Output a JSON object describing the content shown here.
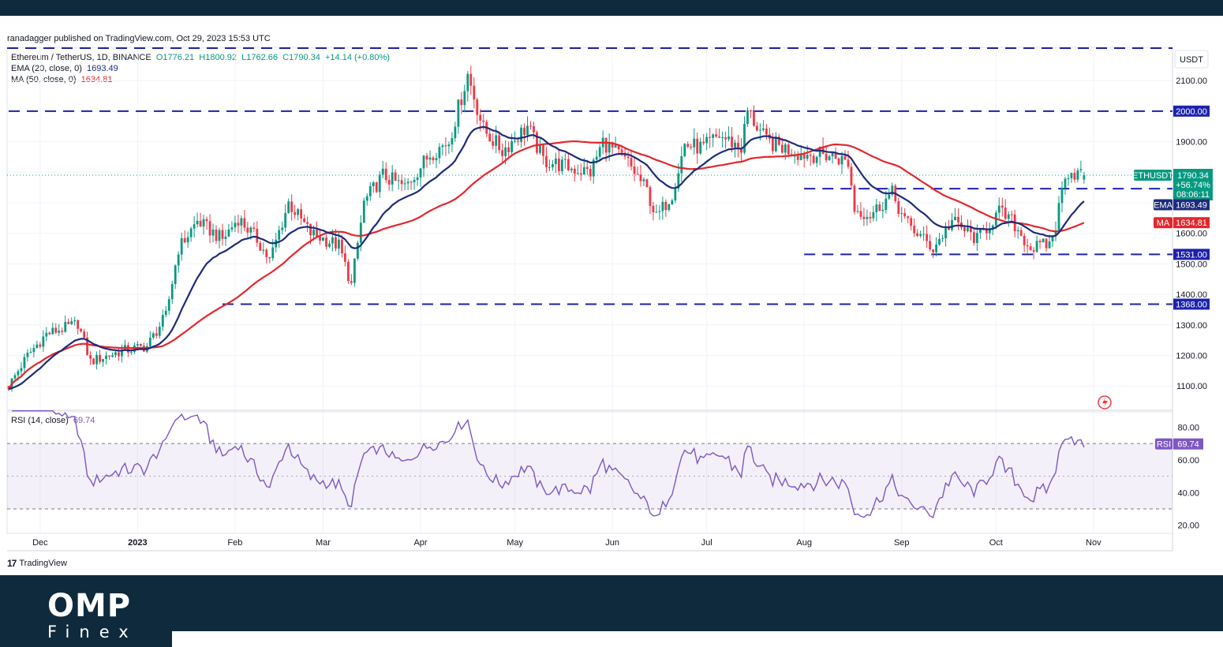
{
  "publisher_line": "ranadagger published on TradingView.com, Oct 29, 2023 15:53 UTC",
  "legend": {
    "symbol_label": "Ethereum / TetherUS, 1D, BINANCE",
    "ohlc": {
      "o": "O1776.21",
      "h": "H1800.92",
      "l": "L1762.66",
      "c": "C1790.34",
      "chg": "+14.14 (+0.80%)"
    },
    "ema_label": "EMA (20, close, 0)",
    "ema_value": "1693.49",
    "ma_label": "MA (50, close, 0)",
    "ma_value": "1634.81",
    "rsi_label": "RSI (14, close)",
    "rsi_value": "69.74"
  },
  "brand": {
    "tradingview": "TradingView",
    "logo_main": "OMP",
    "logo_sub": "Finex"
  },
  "colors": {
    "up": "#089981",
    "down": "#f23645",
    "ema": "#1c2c7a",
    "ma": "#e3272d",
    "rsi": "#7e57c2",
    "level_line": "#1e22aa",
    "header_footer": "#0f2a3d",
    "current_price": "#089981"
  },
  "chart_data": [
    {
      "type": "candlestick",
      "currency_label": "USDT",
      "y_ticks": [
        "1100.00",
        "1200.00",
        "1300.00",
        "1400.00",
        "1500.00",
        "1600.00",
        "1700.00",
        "1800.00",
        "1900.00",
        "2000.00",
        "2100.00"
      ],
      "ylim": [
        1030,
        2160
      ],
      "x_ticks": [
        "Dec",
        "2023",
        "Feb",
        "Mar",
        "Apr",
        "May",
        "Jun",
        "Jul",
        "Aug",
        "Sep",
        "Oct",
        "Nov"
      ],
      "x_tick_dates": [
        "2022-12-01",
        "2023-01-01",
        "2023-02-01",
        "2023-03-01",
        "2023-04-01",
        "2023-05-01",
        "2023-06-01",
        "2023-07-01",
        "2023-08-01",
        "2023-09-01",
        "2023-10-01",
        "2023-11-01"
      ],
      "date_range": [
        "2022-11-21",
        "2023-10-29"
      ],
      "price_path": [
        [
          "2022-11-21",
          1100
        ],
        [
          "2022-11-27",
          1200
        ],
        [
          "2022-12-03",
          1270
        ],
        [
          "2022-12-13",
          1305
        ],
        [
          "2022-12-17",
          1180
        ],
        [
          "2022-12-27",
          1215
        ],
        [
          "2023-01-04",
          1230
        ],
        [
          "2023-01-10",
          1330
        ],
        [
          "2023-01-14",
          1550
        ],
        [
          "2023-01-20",
          1640
        ],
        [
          "2023-01-28",
          1580
        ],
        [
          "2023-02-02",
          1650
        ],
        [
          "2023-02-08",
          1580
        ],
        [
          "2023-02-12",
          1510
        ],
        [
          "2023-02-18",
          1700
        ],
        [
          "2023-02-25",
          1600
        ],
        [
          "2023-03-06",
          1560
        ],
        [
          "2023-03-10",
          1430
        ],
        [
          "2023-03-14",
          1700
        ],
        [
          "2023-03-20",
          1790
        ],
        [
          "2023-03-27",
          1750
        ],
        [
          "2023-04-04",
          1860
        ],
        [
          "2023-04-10",
          1900
        ],
        [
          "2023-04-16",
          2120
        ],
        [
          "2023-04-21",
          1940
        ],
        [
          "2023-04-27",
          1870
        ],
        [
          "2023-05-05",
          1950
        ],
        [
          "2023-05-10",
          1840
        ],
        [
          "2023-05-20",
          1810
        ],
        [
          "2023-05-25",
          1800
        ],
        [
          "2023-05-29",
          1900
        ],
        [
          "2023-06-06",
          1830
        ],
        [
          "2023-06-12",
          1740
        ],
        [
          "2023-06-15",
          1650
        ],
        [
          "2023-06-20",
          1730
        ],
        [
          "2023-06-24",
          1890
        ],
        [
          "2023-06-30",
          1880
        ],
        [
          "2023-07-05",
          1920
        ],
        [
          "2023-07-12",
          1880
        ],
        [
          "2023-07-14",
          2000
        ],
        [
          "2023-07-20",
          1900
        ],
        [
          "2023-07-31",
          1860
        ],
        [
          "2023-08-10",
          1855
        ],
        [
          "2023-08-15",
          1830
        ],
        [
          "2023-08-17",
          1680
        ],
        [
          "2023-08-22",
          1660
        ],
        [
          "2023-08-29",
          1730
        ],
        [
          "2023-09-02",
          1640
        ],
        [
          "2023-09-11",
          1550
        ],
        [
          "2023-09-17",
          1640
        ],
        [
          "2023-09-25",
          1580
        ],
        [
          "2023-10-02",
          1670
        ],
        [
          "2023-10-06",
          1640
        ],
        [
          "2023-10-12",
          1550
        ],
        [
          "2023-10-18",
          1565
        ],
        [
          "2023-10-20",
          1625
        ],
        [
          "2023-10-23",
          1800
        ],
        [
          "2023-10-25",
          1800
        ],
        [
          "2023-10-29",
          1790.34
        ]
      ],
      "indicators": [
        {
          "name": "EMA",
          "period": 20,
          "value": "1693.49"
        },
        {
          "name": "MA",
          "period": 50,
          "value": "1634.81"
        }
      ],
      "horizontal_levels": [
        {
          "value": 2000,
          "label": "2000.00",
          "from": "2022-11-21"
        },
        {
          "value": 1746,
          "label": "1746.00",
          "from": "2023-08-01"
        },
        {
          "value": 1531,
          "label": "1531.00",
          "from": "2023-08-01"
        },
        {
          "value": 1368,
          "label": "1368.00",
          "from": "2023-01-28"
        }
      ],
      "last_price": {
        "symbol": "ETHUSDT",
        "price": "1790.34",
        "change": "+56.74%",
        "countdown": "08:06:11"
      },
      "ema_tag": "EMA",
      "ma_tag": "MA"
    },
    {
      "type": "line",
      "name": "RSI",
      "y_ticks": [
        "20.00",
        "40.00",
        "60.00",
        "80.00"
      ],
      "ylim": [
        12,
        92
      ],
      "band": [
        30,
        70
      ],
      "rsi_tag": "RSI",
      "last_value": "69.74"
    }
  ]
}
